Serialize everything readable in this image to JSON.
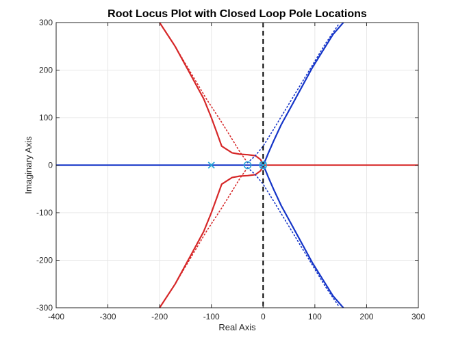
{
  "chart_data": {
    "type": "line",
    "title": "Root Locus Plot with Closed Loop Pole Locations",
    "xlabel": "Real Axis",
    "ylabel": "Imaginary Axis",
    "xlim": [
      -400,
      300
    ],
    "ylim": [
      -300,
      300
    ],
    "xticks": [
      -400,
      -300,
      -200,
      -100,
      0,
      100,
      200,
      300
    ],
    "yticks": [
      -300,
      -200,
      -100,
      0,
      100,
      200,
      300
    ],
    "xtick_labels": [
      "-400",
      "-300",
      "-200",
      "-100",
      "0",
      "100",
      "200",
      "300"
    ],
    "ytick_labels": [
      "-300",
      "-200",
      "-100",
      "0",
      "100",
      "200",
      "300"
    ],
    "grid": true,
    "legend": "none",
    "colors": {
      "red": "#d62728",
      "blue": "#1434c8",
      "cyan": "#2aa5d6",
      "dashed": "#000000",
      "grid": "#e6e6e6",
      "axes": "#262626"
    },
    "series": [
      {
        "color": "red",
        "style": "solid",
        "x": [
          -200,
          -170,
          -140,
          -115,
          -100,
          -90,
          -80,
          -60,
          -45,
          -30,
          -15,
          -5,
          0
        ],
        "y": [
          300,
          250,
          190,
          140,
          100,
          70,
          40,
          26,
          23,
          22,
          20,
          12,
          2
        ]
      },
      {
        "color": "red",
        "style": "solid",
        "x": [
          -200,
          -170,
          -140,
          -115,
          -100,
          -90,
          -80,
          -60,
          -45,
          -30,
          -15,
          -5,
          0
        ],
        "y": [
          -300,
          -250,
          -190,
          -140,
          -100,
          -70,
          -40,
          -26,
          -23,
          -22,
          -20,
          -12,
          -2
        ]
      },
      {
        "color": "red",
        "style": "solid",
        "x": [
          0,
          300
        ],
        "y": [
          0,
          0
        ]
      },
      {
        "color": "red",
        "style": "dotted",
        "x": [
          -200,
          -170,
          -140,
          -110,
          -80,
          -60,
          -45,
          -30
        ],
        "y": [
          300,
          250,
          195,
          140,
          90,
          55,
          28,
          5
        ]
      },
      {
        "color": "red",
        "style": "dotted",
        "x": [
          -200,
          -170,
          -140,
          -110,
          -80,
          -60,
          -45,
          -30
        ],
        "y": [
          -300,
          -250,
          -195,
          -140,
          -90,
          -55,
          -28,
          -5
        ]
      },
      {
        "color": "blue",
        "style": "solid",
        "x": [
          -400,
          -100,
          0
        ],
        "y": [
          0,
          0,
          0
        ]
      },
      {
        "color": "blue",
        "style": "solid",
        "x": [
          0,
          2,
          5,
          10,
          20,
          35,
          55,
          75,
          95,
          115,
          135,
          155
        ],
        "y": [
          2,
          5,
          12,
          25,
          50,
          85,
          125,
          165,
          205,
          240,
          275,
          300
        ]
      },
      {
        "color": "blue",
        "style": "solid",
        "x": [
          0,
          2,
          5,
          10,
          20,
          35,
          55,
          75,
          95,
          115,
          135,
          155
        ],
        "y": [
          -2,
          -5,
          -12,
          -25,
          -50,
          -85,
          -125,
          -165,
          -205,
          -240,
          -275,
          -300
        ]
      },
      {
        "color": "blue",
        "style": "dotted",
        "x": [
          -30,
          -15,
          0,
          20,
          45,
          70,
          95,
          120,
          145
        ],
        "y": [
          5,
          20,
          40,
          75,
          120,
          165,
          210,
          255,
          295
        ]
      },
      {
        "color": "blue",
        "style": "dotted",
        "x": [
          -30,
          -15,
          0,
          20,
          45,
          70,
          95,
          120,
          145
        ],
        "y": [
          -5,
          -20,
          -40,
          -75,
          -120,
          -165,
          -210,
          -255,
          -295
        ]
      }
    ],
    "markers": [
      {
        "type": "x",
        "x": -100,
        "y": 0,
        "color": "cyan"
      },
      {
        "type": "o",
        "x": -30,
        "y": 0,
        "color": "cyan"
      },
      {
        "type": "o",
        "x": 0,
        "y": 0,
        "color": "cyan"
      },
      {
        "type": "x",
        "x": 0,
        "y": 0,
        "color": "cyan"
      }
    ],
    "reference_line": {
      "x": 0,
      "style": "dashed",
      "color": "dashed"
    }
  }
}
